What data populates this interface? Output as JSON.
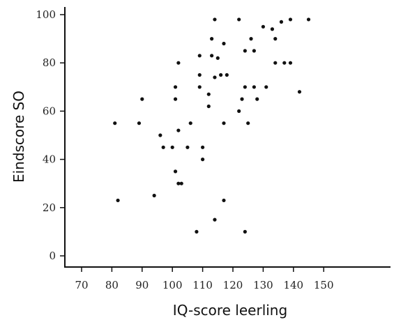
{
  "chart_data": {
    "type": "scatter",
    "title": "",
    "xlabel": "IQ-score leerling",
    "ylabel": "Eindscore SO",
    "xlim": [
      67,
      153
    ],
    "ylim": [
      -3,
      103
    ],
    "xticks": [
      70,
      80,
      90,
      100,
      110,
      120,
      130,
      140,
      150
    ],
    "yticks": [
      0,
      20,
      40,
      60,
      80,
      100
    ],
    "xtick_labels": [
      "70",
      "80",
      "90",
      "100",
      "110",
      "120",
      "130",
      "140",
      "150"
    ],
    "ytick_labels": [
      "0",
      "20",
      "40",
      "60",
      "80",
      "100"
    ],
    "grid": false,
    "legend": false,
    "marker_color": "#111111",
    "series": [
      {
        "points": [
          {
            "x": 81,
            "y": 55
          },
          {
            "x": 82,
            "y": 23
          },
          {
            "x": 89,
            "y": 55
          },
          {
            "x": 90,
            "y": 65
          },
          {
            "x": 94,
            "y": 25
          },
          {
            "x": 96,
            "y": 50
          },
          {
            "x": 97,
            "y": 45
          },
          {
            "x": 100,
            "y": 45
          },
          {
            "x": 101,
            "y": 70
          },
          {
            "x": 101,
            "y": 65
          },
          {
            "x": 101,
            "y": 35
          },
          {
            "x": 102,
            "y": 80
          },
          {
            "x": 102,
            "y": 52
          },
          {
            "x": 102,
            "y": 30
          },
          {
            "x": 103,
            "y": 30
          },
          {
            "x": 105,
            "y": 45
          },
          {
            "x": 106,
            "y": 55
          },
          {
            "x": 108,
            "y": 10
          },
          {
            "x": 109,
            "y": 83
          },
          {
            "x": 109,
            "y": 75
          },
          {
            "x": 109,
            "y": 70
          },
          {
            "x": 110,
            "y": 45
          },
          {
            "x": 110,
            "y": 40
          },
          {
            "x": 112,
            "y": 67
          },
          {
            "x": 112,
            "y": 62
          },
          {
            "x": 113,
            "y": 90
          },
          {
            "x": 113,
            "y": 83
          },
          {
            "x": 114,
            "y": 98
          },
          {
            "x": 114,
            "y": 74
          },
          {
            "x": 114,
            "y": 15
          },
          {
            "x": 115,
            "y": 82
          },
          {
            "x": 116,
            "y": 75
          },
          {
            "x": 117,
            "y": 88
          },
          {
            "x": 117,
            "y": 55
          },
          {
            "x": 117,
            "y": 23
          },
          {
            "x": 118,
            "y": 75
          },
          {
            "x": 122,
            "y": 98
          },
          {
            "x": 122,
            "y": 60
          },
          {
            "x": 123,
            "y": 65
          },
          {
            "x": 124,
            "y": 85
          },
          {
            "x": 124,
            "y": 70
          },
          {
            "x": 124,
            "y": 10
          },
          {
            "x": 125,
            "y": 55
          },
          {
            "x": 126,
            "y": 90
          },
          {
            "x": 127,
            "y": 85
          },
          {
            "x": 127,
            "y": 70
          },
          {
            "x": 128,
            "y": 65
          },
          {
            "x": 130,
            "y": 95
          },
          {
            "x": 131,
            "y": 70
          },
          {
            "x": 133,
            "y": 94
          },
          {
            "x": 134,
            "y": 90
          },
          {
            "x": 134,
            "y": 80
          },
          {
            "x": 136,
            "y": 97
          },
          {
            "x": 137,
            "y": 80
          },
          {
            "x": 139,
            "y": 98
          },
          {
            "x": 139,
            "y": 80
          },
          {
            "x": 142,
            "y": 68
          },
          {
            "x": 145,
            "y": 98
          }
        ]
      }
    ]
  }
}
